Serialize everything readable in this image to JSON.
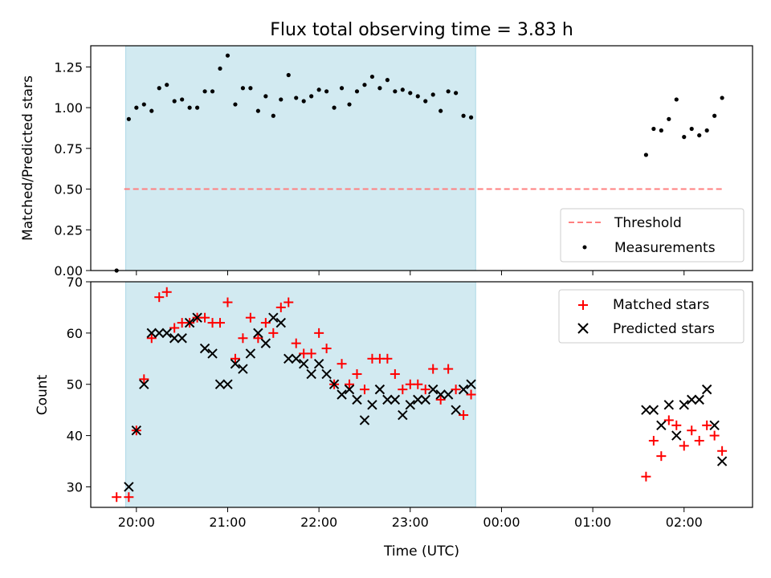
{
  "chart_data": [
    {
      "type": "scatter",
      "title": "Flux total observing time = 3.83 h",
      "xlabel": "",
      "ylabel": "Matched/Predicted stars",
      "ylim": [
        0,
        1.38
      ],
      "yticks": [
        "0.00",
        "0.25",
        "0.50",
        "0.75",
        "1.00",
        "1.25"
      ],
      "shaded_region": {
        "x_start": "19:53",
        "x_end": "23:43",
        "color": "#add8e6"
      },
      "legend_position": "lower-right",
      "series": [
        {
          "name": "Threshold",
          "style": "dashed-line",
          "color": "#ff7f7f",
          "x": [
            "19:52",
            "02:25"
          ],
          "y": [
            0.5,
            0.5
          ]
        },
        {
          "name": "Measurements",
          "style": "dot",
          "color": "#000000",
          "x": [
            "19:47",
            "19:55",
            "20:00",
            "20:05",
            "20:10",
            "20:15",
            "20:20",
            "20:25",
            "20:30",
            "20:35",
            "20:40",
            "20:45",
            "20:50",
            "20:55",
            "21:00",
            "21:05",
            "21:10",
            "21:15",
            "21:20",
            "21:25",
            "21:30",
            "21:35",
            "21:40",
            "21:45",
            "21:50",
            "21:55",
            "22:00",
            "22:05",
            "22:10",
            "22:15",
            "22:20",
            "22:25",
            "22:30",
            "22:35",
            "22:40",
            "22:45",
            "22:50",
            "22:55",
            "23:00",
            "23:05",
            "23:10",
            "23:15",
            "23:20",
            "23:25",
            "23:30",
            "23:35",
            "23:40",
            "01:35",
            "01:40",
            "01:45",
            "01:50",
            "01:55",
            "02:00",
            "02:05",
            "02:10",
            "02:15",
            "02:20",
            "02:25"
          ],
          "y": [
            0.0,
            0.93,
            1.0,
            1.02,
            0.98,
            1.12,
            1.14,
            1.04,
            1.05,
            1.0,
            1.0,
            1.1,
            1.1,
            1.24,
            1.32,
            1.02,
            1.12,
            1.12,
            0.98,
            1.07,
            0.95,
            1.05,
            1.2,
            1.06,
            1.04,
            1.07,
            1.11,
            1.1,
            1.0,
            1.12,
            1.02,
            1.1,
            1.14,
            1.19,
            1.12,
            1.17,
            1.1,
            1.11,
            1.09,
            1.07,
            1.04,
            1.08,
            0.98,
            1.1,
            1.09,
            0.95,
            0.94,
            0.71,
            0.87,
            0.86,
            0.93,
            1.05,
            0.82,
            0.87,
            0.83,
            0.86,
            0.95,
            1.06
          ]
        }
      ]
    },
    {
      "type": "scatter",
      "title": "",
      "xlabel": "Time (UTC)",
      "ylabel": "Count",
      "ylim": [
        26,
        70
      ],
      "yticks": [
        "30",
        "40",
        "50",
        "60",
        "70"
      ],
      "xlim": [
        "19:30",
        "02:45"
      ],
      "xticks": [
        "20:00",
        "21:00",
        "22:00",
        "23:00",
        "00:00",
        "01:00",
        "02:00"
      ],
      "shaded_region": {
        "x_start": "19:53",
        "x_end": "23:43",
        "color": "#add8e6"
      },
      "legend_position": "upper-right",
      "series": [
        {
          "name": "Matched stars",
          "marker": "+",
          "color": "#ff0000",
          "x": [
            "19:47",
            "19:55",
            "20:00",
            "20:05",
            "20:10",
            "20:15",
            "20:20",
            "20:25",
            "20:30",
            "20:35",
            "20:40",
            "20:45",
            "20:50",
            "20:55",
            "21:00",
            "21:05",
            "21:10",
            "21:15",
            "21:20",
            "21:25",
            "21:30",
            "21:35",
            "21:40",
            "21:45",
            "21:50",
            "21:55",
            "22:00",
            "22:05",
            "22:10",
            "22:15",
            "22:20",
            "22:25",
            "22:30",
            "22:35",
            "22:40",
            "22:45",
            "22:50",
            "22:55",
            "23:00",
            "23:05",
            "23:10",
            "23:15",
            "23:20",
            "23:25",
            "23:30",
            "23:35",
            "23:40",
            "01:35",
            "01:40",
            "01:45",
            "01:50",
            "01:55",
            "02:00",
            "02:05",
            "02:10",
            "02:15",
            "02:20",
            "02:25"
          ],
          "y": [
            28,
            28,
            41,
            51,
            59,
            67,
            68,
            61,
            62,
            62,
            63,
            63,
            62,
            62,
            66,
            55,
            59,
            63,
            59,
            62,
            60,
            65,
            66,
            58,
            56,
            56,
            60,
            57,
            50,
            54,
            50,
            52,
            49,
            55,
            55,
            55,
            52,
            49,
            50,
            50,
            49,
            53,
            47,
            53,
            49,
            44,
            48,
            32,
            39,
            36,
            43,
            42,
            38,
            41,
            39,
            42,
            40,
            37
          ]
        },
        {
          "name": "Predicted stars",
          "marker": "x",
          "color": "#000000",
          "x": [
            "19:55",
            "20:00",
            "20:05",
            "20:10",
            "20:15",
            "20:20",
            "20:25",
            "20:30",
            "20:35",
            "20:40",
            "20:45",
            "20:50",
            "20:55",
            "21:00",
            "21:05",
            "21:10",
            "21:15",
            "21:20",
            "21:25",
            "21:30",
            "21:35",
            "21:40",
            "21:45",
            "21:50",
            "21:55",
            "22:00",
            "22:05",
            "22:10",
            "22:15",
            "22:20",
            "22:25",
            "22:30",
            "22:35",
            "22:40",
            "22:45",
            "22:50",
            "22:55",
            "23:00",
            "23:05",
            "23:10",
            "23:15",
            "23:20",
            "23:25",
            "23:30",
            "23:35",
            "23:40",
            "01:35",
            "01:40",
            "01:45",
            "01:50",
            "01:55",
            "02:00",
            "02:05",
            "02:10",
            "02:15",
            "02:20",
            "02:25"
          ],
          "y": [
            30,
            41,
            50,
            60,
            60,
            60,
            59,
            59,
            62,
            63,
            57,
            56,
            50,
            50,
            54,
            53,
            56,
            60,
            58,
            63,
            62,
            55,
            55,
            54,
            52,
            54,
            52,
            50,
            48,
            49,
            47,
            43,
            46,
            49,
            47,
            47,
            44,
            46,
            47,
            47,
            49,
            48,
            48,
            45,
            49,
            50,
            45,
            45,
            42,
            46,
            40,
            46,
            47,
            47,
            49,
            42,
            35
          ]
        }
      ]
    }
  ]
}
